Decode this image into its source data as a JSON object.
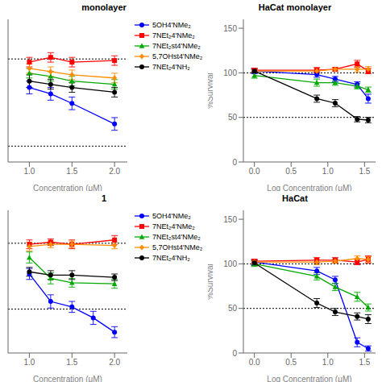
{
  "chart_data": [
    {
      "type": "line",
      "title": "monolayer",
      "xlabel": "Concentration (μM)",
      "xlim": [
        0.75,
        2.15
      ],
      "ylim": [
        40,
        130
      ],
      "xticks": [
        {
          "value": 1.0,
          "label": "1.0"
        },
        {
          "value": 1.5,
          "label": "1.5"
        },
        {
          "value": 2.0,
          "label": "2.0"
        }
      ],
      "tick_labels": "x",
      "grid": false,
      "legend": "upper right",
      "hlines": [
        50,
        105
      ],
      "series": [
        {
          "name": "5OH4'NMe₂",
          "color": "#0000FF",
          "marker": "circle",
          "x": [
            1.0,
            1.25,
            1.5,
            2.0
          ],
          "values": [
            87,
            83,
            77,
            64
          ],
          "yerr": [
            4,
            4,
            4,
            4
          ]
        },
        {
          "name": "7NEt₂4'NMe₂",
          "color": "#FF0000",
          "marker": "square",
          "x": [
            1.0,
            1.25,
            1.5,
            2.0
          ],
          "values": [
            103,
            106,
            103,
            104
          ],
          "yerr": [
            3,
            3,
            3,
            3
          ]
        },
        {
          "name": "7NEt₂st4'NMe₂",
          "color": "#00AA00",
          "marker": "triangle",
          "x": [
            1.0,
            1.25,
            1.5,
            2.0
          ],
          "values": [
            96,
            94,
            91,
            89
          ],
          "yerr": [
            3,
            3,
            3,
            3
          ]
        },
        {
          "name": "5,7OHst4'NMe₂",
          "color": "#FF8C00",
          "marker": "diamond",
          "x": [
            1.0,
            1.25,
            1.5,
            2.0
          ],
          "values": [
            99,
            97,
            95,
            93
          ],
          "yerr": [
            3,
            3,
            3,
            3
          ]
        },
        {
          "name": "7NEt₂4'NH₂",
          "color": "#000000",
          "marker": "circle",
          "x": [
            1.0,
            1.25,
            1.5,
            2.0
          ],
          "values": [
            91,
            89,
            87,
            84
          ],
          "yerr": [
            4,
            3,
            3,
            3
          ]
        }
      ]
    },
    {
      "type": "line",
      "title": "HaCat monolayer",
      "xlabel": "Log Concentration (μM)",
      "ylabel": "%Survival",
      "xlim": [
        -0.15,
        1.65
      ],
      "ylim": [
        0,
        160
      ],
      "xticks": [
        {
          "value": 0.0,
          "label": "0.0"
        },
        {
          "value": 0.5,
          "label": "0.5"
        },
        {
          "value": 1.0,
          "label": "1.0"
        },
        {
          "value": 1.5,
          "label": "1.5"
        }
      ],
      "yticks": [
        0,
        50,
        100,
        150
      ],
      "grid": false,
      "hlines": [
        50,
        100
      ],
      "series": [
        {
          "color": "#0000FF",
          "marker": "circle",
          "x": [
            0.0,
            0.85,
            1.1,
            1.4,
            1.55
          ],
          "values": [
            102,
            98,
            93,
            87,
            71
          ],
          "yerr": [
            3,
            3,
            3,
            3,
            5
          ]
        },
        {
          "color": "#FF0000",
          "marker": "square",
          "x": [
            0.0,
            0.85,
            1.1,
            1.4,
            1.55
          ],
          "values": [
            103,
            103,
            104,
            110,
            102
          ],
          "yerr": [
            2,
            3,
            2,
            4,
            3
          ]
        },
        {
          "color": "#00AA00",
          "marker": "triangle",
          "x": [
            0.0,
            0.85,
            1.1,
            1.4,
            1.55
          ],
          "values": [
            97,
            89,
            89,
            85,
            81
          ],
          "yerr": [
            3,
            4,
            3,
            3,
            3
          ]
        },
        {
          "color": "#FF8C00",
          "marker": "diamond",
          "x": [
            0.0,
            0.85,
            1.1,
            1.4,
            1.55
          ],
          "values": [
            102,
            102,
            104,
            104,
            104
          ],
          "yerr": [
            2,
            3,
            2,
            3,
            3
          ]
        },
        {
          "color": "#000000",
          "marker": "circle",
          "x": [
            0.0,
            0.85,
            1.1,
            1.4,
            1.55
          ],
          "values": [
            102,
            71,
            66,
            48,
            47
          ],
          "yerr": [
            2,
            4,
            4,
            3,
            3
          ]
        }
      ]
    },
    {
      "type": "line",
      "title": "1",
      "xlabel": "Concentration (μM)",
      "xlim": [
        0.75,
        2.15
      ],
      "ylim": [
        10,
        140
      ],
      "xticks": [
        {
          "value": 1.0,
          "label": "1.0"
        },
        {
          "value": 1.5,
          "label": "1.5"
        },
        {
          "value": 2.0,
          "label": "2.0"
        }
      ],
      "tick_labels": "x",
      "grid": false,
      "legend": "upper right",
      "hlines": [
        50,
        110
      ],
      "series": [
        {
          "name": "5OH4'NMe₂",
          "color": "#0000FF",
          "marker": "circle",
          "x": [
            1.0,
            1.25,
            1.5,
            1.75,
            2.0
          ],
          "values": [
            82,
            57,
            52,
            42,
            29
          ],
          "yerr": [
            5,
            6,
            5,
            6,
            5
          ]
        },
        {
          "name": "7NEt₂4'NMe₂",
          "color": "#FF0000",
          "marker": "square",
          "x": [
            1.0,
            1.25,
            1.5,
            2.0
          ],
          "values": [
            109,
            111,
            109,
            113
          ],
          "yerr": [
            4,
            3,
            4,
            4
          ]
        },
        {
          "name": "7NEt₂st4'NMe₂",
          "color": "#00AA00",
          "marker": "triangle",
          "x": [
            1.0,
            1.25,
            1.5,
            2.0
          ],
          "values": [
            97,
            78,
            74,
            73
          ],
          "yerr": [
            5,
            5,
            4,
            4
          ]
        },
        {
          "name": "5,7OHst4'NMe₂",
          "color": "#FF8C00",
          "marker": "diamond",
          "x": [
            1.0,
            1.25,
            1.5,
            2.0
          ],
          "values": [
            107,
            109,
            109,
            108
          ],
          "yerr": [
            4,
            3,
            3,
            3
          ]
        },
        {
          "name": "7NEt₂4'NH₂",
          "color": "#000000",
          "marker": "circle",
          "x": [
            1.0,
            1.25,
            1.5,
            2.0
          ],
          "values": [
            84,
            81,
            81,
            79
          ],
          "yerr": [
            4,
            4,
            4,
            3
          ]
        }
      ]
    },
    {
      "type": "line",
      "title": "HaCat",
      "xlabel": "Log Concentration (μM)",
      "ylabel": "%Survival",
      "xlim": [
        -0.15,
        1.65
      ],
      "ylim": [
        0,
        160
      ],
      "xticks": [
        {
          "value": 0.0,
          "label": "0.0"
        },
        {
          "value": 0.5,
          "label": "0.5"
        },
        {
          "value": 1.0,
          "label": "1.0"
        },
        {
          "value": 1.5,
          "label": "1.5"
        }
      ],
      "yticks": [
        0,
        50,
        100,
        150
      ],
      "grid": false,
      "hlines": [
        50,
        100
      ],
      "series": [
        {
          "color": "#0000FF",
          "marker": "circle",
          "x": [
            0.0,
            0.85,
            1.1,
            1.4,
            1.55
          ],
          "values": [
            102,
            92,
            82,
            12,
            5
          ],
          "yerr": [
            3,
            4,
            4,
            5,
            3
          ]
        },
        {
          "color": "#FF0000",
          "marker": "square",
          "x": [
            0.0,
            0.85,
            1.1,
            1.4,
            1.55
          ],
          "values": [
            103,
            104,
            104,
            102,
            105
          ],
          "yerr": [
            2,
            3,
            3,
            3,
            4
          ]
        },
        {
          "color": "#00AA00",
          "marker": "triangle",
          "x": [
            0.0,
            0.85,
            1.1,
            1.4,
            1.55
          ],
          "values": [
            100,
            86,
            74,
            63,
            51
          ],
          "yerr": [
            3,
            4,
            4,
            5,
            4
          ]
        },
        {
          "color": "#FF8C00",
          "marker": "diamond",
          "x": [
            0.0,
            0.85,
            1.1,
            1.4,
            1.55
          ],
          "values": [
            102,
            102,
            103,
            106,
            105
          ],
          "yerr": [
            2,
            3,
            2,
            3,
            3
          ]
        },
        {
          "color": "#000000",
          "marker": "circle",
          "x": [
            0.0,
            0.85,
            1.1,
            1.4,
            1.55
          ],
          "values": [
            101,
            56,
            46,
            41,
            38
          ],
          "yerr": [
            3,
            5,
            4,
            4,
            5
          ]
        }
      ]
    }
  ]
}
